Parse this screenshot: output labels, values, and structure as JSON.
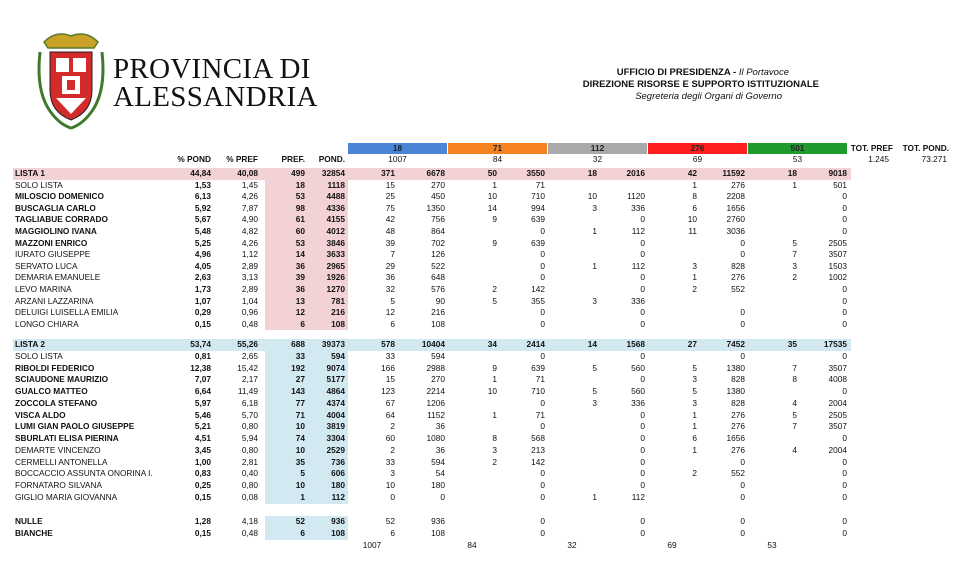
{
  "header": {
    "org_line1": "PROVINCIA DI",
    "org_line2": "ALESSANDRIA",
    "office": "UFFICIO DI PRESIDENZA -",
    "office_role": "Il Portavoce",
    "direction": "DIREZIONE RISORSE E SUPPORTO ISTITUZIONALE",
    "secretariat": "Segreteria degli Organi di Governo"
  },
  "table": {
    "groups": [
      {
        "label": "18",
        "color": "#4a86d8",
        "weight": "1007"
      },
      {
        "label": "71",
        "color": "#f58220",
        "weight": "84"
      },
      {
        "label": "112",
        "color": "#a9a9a9",
        "weight": "32"
      },
      {
        "label": "276",
        "color": "#ff1f1f",
        "weight": "69"
      },
      {
        "label": "501",
        "color": "#1f9a2e",
        "weight": "53"
      }
    ],
    "columns": [
      "% POND",
      "% PREF",
      "PREF.",
      "POND."
    ],
    "totals_header": [
      "TOT. PREF",
      "TOT. POND."
    ],
    "totals": [
      "1.245",
      "73.271"
    ],
    "sections": [
      {
        "highlight": "#f3d2d5",
        "rows": [
          {
            "name": "LISTA 1",
            "bold": true,
            "total": true,
            "cells": [
              "44,84",
              "40,08",
              499,
              32854,
              371,
              6678,
              50,
              3550,
              18,
              2016,
              42,
              11592,
              18,
              9018
            ]
          },
          {
            "name": "SOLO LISTA",
            "bold": false,
            "cells": [
              "1,53",
              "1,45",
              18,
              1118,
              15,
              270,
              1,
              71,
              null,
              null,
              1,
              276,
              1,
              501
            ]
          },
          {
            "name": "MILOSCIO DOMENICO",
            "bold": true,
            "cells": [
              "6,13",
              "4,26",
              53,
              4488,
              25,
              450,
              10,
              710,
              10,
              1120,
              8,
              2208,
              null,
              0
            ]
          },
          {
            "name": "BUSCAGLIA CARLO",
            "bold": true,
            "cells": [
              "5,92",
              "7,87",
              98,
              4336,
              75,
              1350,
              14,
              994,
              3,
              336,
              6,
              1656,
              null,
              0
            ]
          },
          {
            "name": "TAGLIABUE CORRADO",
            "bold": true,
            "cells": [
              "5,67",
              "4,90",
              61,
              4155,
              42,
              756,
              9,
              639,
              null,
              0,
              10,
              2760,
              null,
              0
            ]
          },
          {
            "name": "MAGGIOLINO IVANA",
            "bold": true,
            "cells": [
              "5,48",
              "4,82",
              60,
              4012,
              48,
              864,
              null,
              0,
              1,
              112,
              11,
              3036,
              null,
              0
            ]
          },
          {
            "name": "MAZZONI ENRICO",
            "bold": true,
            "cells": [
              "5,25",
              "4,26",
              53,
              3846,
              39,
              702,
              9,
              639,
              null,
              0,
              null,
              0,
              5,
              2505
            ]
          },
          {
            "name": "IURATO GIUSEPPE",
            "bold": false,
            "cells": [
              "4,96",
              "1,12",
              14,
              3633,
              7,
              126,
              null,
              0,
              null,
              0,
              null,
              0,
              7,
              3507
            ]
          },
          {
            "name": "SERVATO LUCA",
            "bold": false,
            "cells": [
              "4,05",
              "2,89",
              36,
              2965,
              29,
              522,
              null,
              0,
              1,
              112,
              3,
              828,
              3,
              1503
            ]
          },
          {
            "name": "DEMARIA EMANUELE",
            "bold": false,
            "cells": [
              "2,63",
              "3,13",
              39,
              1926,
              36,
              648,
              null,
              0,
              null,
              0,
              1,
              276,
              2,
              1002
            ]
          },
          {
            "name": "LEVO MARINA",
            "bold": false,
            "cells": [
              "1,73",
              "2,89",
              36,
              1270,
              32,
              576,
              2,
              142,
              null,
              0,
              2,
              552,
              null,
              0
            ]
          },
          {
            "name": "ARZANI LAZZARINA",
            "bold": false,
            "cells": [
              "1,07",
              "1,04",
              13,
              781,
              5,
              90,
              5,
              355,
              3,
              336,
              null,
              null,
              null,
              0
            ]
          },
          {
            "name": "DELUIGI LUISELLA EMILIA",
            "bold": false,
            "cells": [
              "0,29",
              "0,96",
              12,
              216,
              12,
              216,
              null,
              0,
              null,
              0,
              null,
              0,
              null,
              0
            ]
          },
          {
            "name": "LONGO CHIARA",
            "bold": false,
            "cells": [
              "0,15",
              "0,48",
              6,
              108,
              6,
              108,
              null,
              0,
              null,
              0,
              null,
              0,
              null,
              0
            ]
          }
        ]
      },
      {
        "highlight": "#d3e9f1",
        "rows": [
          {
            "name": "LISTA 2",
            "bold": true,
            "total": true,
            "cells": [
              "53,74",
              "55,26",
              688,
              39373,
              578,
              10404,
              34,
              2414,
              14,
              1568,
              27,
              7452,
              35,
              17535
            ]
          },
          {
            "name": "SOLO LISTA",
            "bold": false,
            "cells": [
              "0,81",
              "2,65",
              33,
              594,
              33,
              594,
              null,
              0,
              null,
              0,
              null,
              0,
              null,
              0
            ]
          },
          {
            "name": "RIBOLDI FEDERICO",
            "bold": true,
            "cells": [
              "12,38",
              "15,42",
              192,
              9074,
              166,
              2988,
              9,
              639,
              5,
              560,
              5,
              1380,
              7,
              3507
            ]
          },
          {
            "name": "SCIAUDONE MAURIZIO",
            "bold": true,
            "cells": [
              "7,07",
              "2,17",
              27,
              5177,
              15,
              270,
              1,
              71,
              null,
              0,
              3,
              828,
              8,
              4008
            ]
          },
          {
            "name": "GUALCO MATTEO",
            "bold": true,
            "cells": [
              "6,64",
              "11,49",
              143,
              4864,
              123,
              2214,
              10,
              710,
              5,
              560,
              5,
              1380,
              null,
              0
            ]
          },
          {
            "name": "ZOCCOLA STEFANO",
            "bold": true,
            "cells": [
              "5,97",
              "6,18",
              77,
              4374,
              67,
              1206,
              null,
              0,
              3,
              336,
              3,
              828,
              4,
              2004
            ]
          },
          {
            "name": "VISCA ALDO",
            "bold": true,
            "cells": [
              "5,46",
              "5,70",
              71,
              4004,
              64,
              1152,
              1,
              71,
              null,
              0,
              1,
              276,
              5,
              2505
            ]
          },
          {
            "name": "LUMI GIAN PAOLO GIUSEPPE",
            "bold": true,
            "cells": [
              "5,21",
              "0,80",
              10,
              3819,
              2,
              36,
              null,
              0,
              null,
              0,
              1,
              276,
              7,
              3507
            ]
          },
          {
            "name": "SBURLATI ELISA PIERINA",
            "bold": true,
            "cells": [
              "4,51",
              "5,94",
              74,
              3304,
              60,
              1080,
              8,
              568,
              null,
              0,
              6,
              1656,
              null,
              0
            ]
          },
          {
            "name": "DEMARTE VINCENZO",
            "bold": false,
            "cells": [
              "3,45",
              "0,80",
              10,
              2529,
              2,
              36,
              3,
              213,
              null,
              0,
              1,
              276,
              4,
              2004
            ]
          },
          {
            "name": "CERMELLI ANTONELLA",
            "bold": false,
            "cells": [
              "1,00",
              "2,81",
              35,
              736,
              33,
              594,
              2,
              142,
              null,
              0,
              null,
              0,
              null,
              0
            ]
          },
          {
            "name": "BOCCACCIO ASSUNTA ONORINA I.",
            "bold": false,
            "cells": [
              "0,83",
              "0,40",
              5,
              606,
              3,
              54,
              null,
              0,
              null,
              0,
              2,
              552,
              null,
              0
            ]
          },
          {
            "name": "FORNATARO SILVANA",
            "bold": false,
            "cells": [
              "0,25",
              "0,80",
              10,
              180,
              10,
              180,
              null,
              0,
              null,
              0,
              null,
              0,
              null,
              0
            ]
          },
          {
            "name": "GIGLIO MARIA GIOVANNA",
            "bold": false,
            "cells": [
              "0,15",
              "0,08",
              1,
              112,
              0,
              0,
              null,
              0,
              1,
              112,
              null,
              0,
              null,
              0
            ]
          }
        ]
      },
      {
        "highlight": "#d3e9f1",
        "rows": [
          {
            "name": "NULLE",
            "bold": true,
            "cells": [
              "1,28",
              "4,18",
              52,
              936,
              52,
              936,
              null,
              0,
              null,
              0,
              null,
              0,
              null,
              0
            ]
          },
          {
            "name": "BIANCHE",
            "bold": true,
            "cells": [
              "0,15",
              "0,48",
              6,
              108,
              6,
              108,
              null,
              0,
              null,
              0,
              null,
              0,
              null,
              0
            ]
          }
        ]
      }
    ],
    "footer": [
      "1007",
      "84",
      "32",
      "69",
      "53"
    ]
  }
}
